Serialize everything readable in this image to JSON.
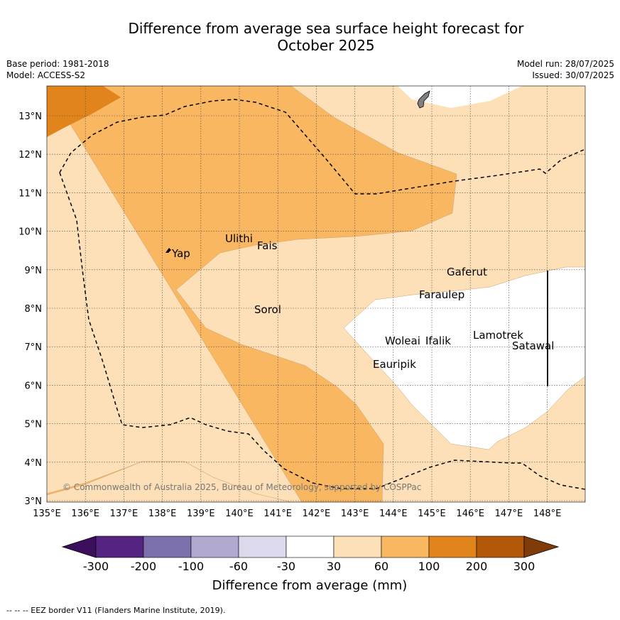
{
  "title_line1": "Difference from average sea surface height forecast for",
  "title_line2": "October 2025",
  "meta_left": [
    "Base period: 1981-2018",
    "Model: ACCESS-S2"
  ],
  "meta_right": [
    "Model run: 28/07/2025",
    "Issued: 30/07/2025"
  ],
  "map": {
    "lon_labels": [
      "135°E",
      "136°E",
      "137°E",
      "138°E",
      "139°E",
      "140°E",
      "141°E",
      "142°E",
      "143°E",
      "144°E",
      "145°E",
      "146°E",
      "147°E",
      "148°E"
    ],
    "lat_labels": [
      "3°N",
      "4°N",
      "5°N",
      "6°N",
      "7°N",
      "8°N",
      "9°N",
      "10°N",
      "11°N",
      "12°N",
      "13°N"
    ],
    "places": [
      "Yap",
      "Ulithi",
      "Fais",
      "Sorol",
      "Gaferut",
      "Faraulep",
      "Woleai",
      "Ifalik",
      "Lamotrek",
      "Satawal",
      "Eauripik"
    ],
    "copyright": "© Commonwealth of Australia 2025, Bureau of Meteorology, supported by COSPPac"
  },
  "colorbar": {
    "ticks": [
      "-300",
      "-200",
      "-100",
      "-60",
      "-30",
      "30",
      "60",
      "100",
      "200",
      "300"
    ],
    "colors": [
      "#3b0f5c",
      "#54237f",
      "#7e70ac",
      "#b1a9d0",
      "#dbd9eb",
      "#ffffff",
      "#fde0b7",
      "#fab762",
      "#e1841c",
      "#b35808",
      "#7f3b08"
    ],
    "title": "Difference from average (mm)"
  },
  "footer": "--  --  -- EEZ border V11 (Flanders Marine Institute, 2019)."
}
